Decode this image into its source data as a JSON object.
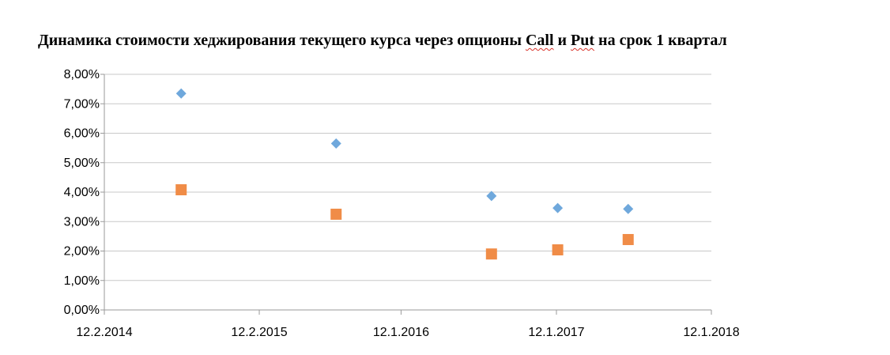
{
  "chart_data": {
    "type": "scatter",
    "title": {
      "p1": "Динамика стоимости хеджирования текущего курса через опционы ",
      "w1": "Call",
      "p2": " и ",
      "w2": "Put",
      "p3": " на срок 1 квартал"
    },
    "x_ticks": [
      "12.2.2014",
      "12.2.2015",
      "12.1.2016",
      "12.1.2017",
      "12.1.2018"
    ],
    "y_ticks": [
      "0,00%",
      "1,00%",
      "2,00%",
      "3,00%",
      "4,00%",
      "5,00%",
      "6,00%",
      "7,00%",
      "8,00%"
    ],
    "ylim": [
      0,
      8
    ],
    "grid": true,
    "legend": "none",
    "series": [
      {
        "marker": "diamond",
        "color": "#6fa8dc",
        "points": [
          {
            "x": "2014-08-12",
            "y": 7.35
          },
          {
            "x": "2015-08-12",
            "y": 5.65
          },
          {
            "x": "2016-08-12",
            "y": 3.87
          },
          {
            "x": "2017-01-15",
            "y": 3.46
          },
          {
            "x": "2017-06-30",
            "y": 3.43
          }
        ]
      },
      {
        "marker": "square",
        "color": "#f08c47",
        "points": [
          {
            "x": "2014-08-12",
            "y": 4.08
          },
          {
            "x": "2015-08-12",
            "y": 3.25
          },
          {
            "x": "2016-08-12",
            "y": 1.9
          },
          {
            "x": "2017-01-15",
            "y": 2.04
          },
          {
            "x": "2017-06-30",
            "y": 2.39
          }
        ]
      }
    ]
  }
}
